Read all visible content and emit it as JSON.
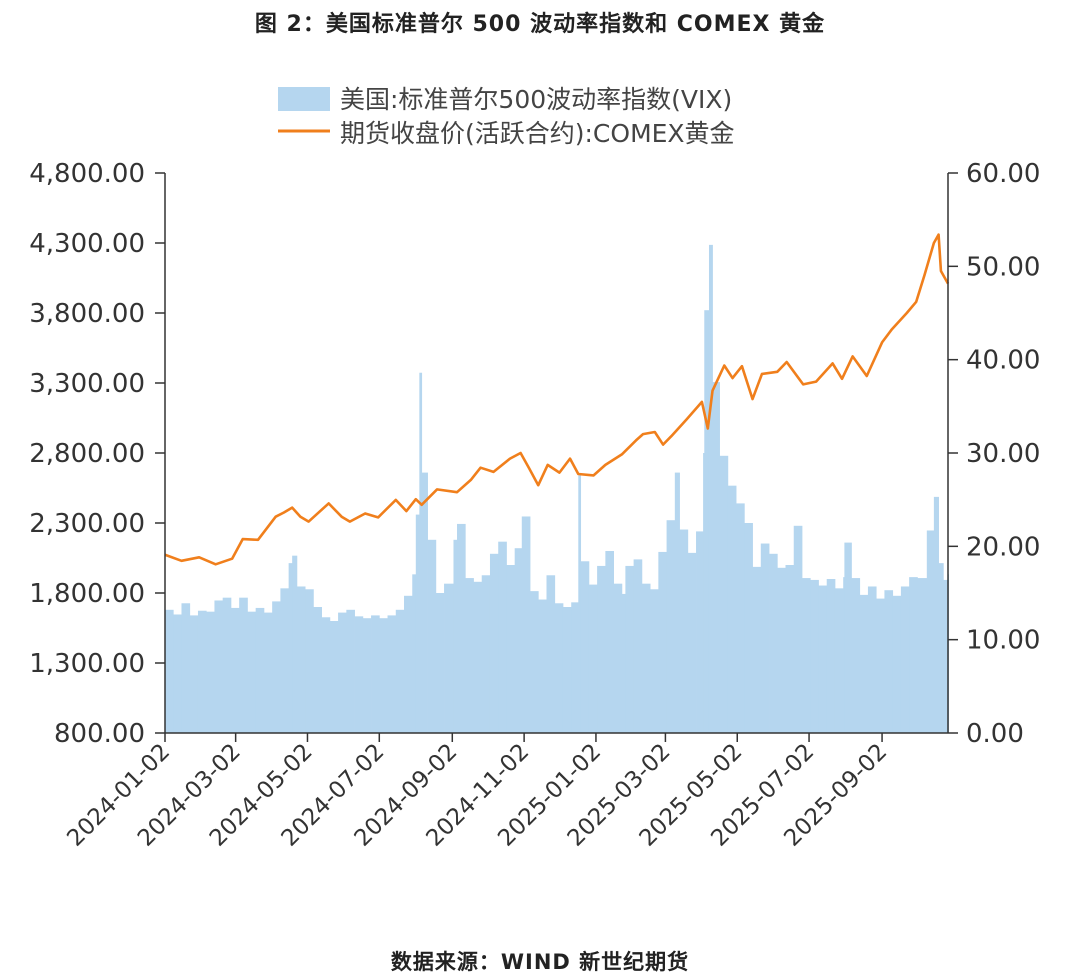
{
  "header": {
    "title": "图 2：美国标准普尔 500 波动率指数和 COMEX 黄金"
  },
  "footer": {
    "source": "数据来源：WIND 新世纪期货"
  },
  "chart_data": {
    "type": "bar+line",
    "legend_position": "top-center",
    "grid": false,
    "colors": {
      "vix": "#b5d6ef",
      "gold": "#f07f1c",
      "axis": "#333333"
    },
    "series": [
      {
        "name": "美国:标准普尔500波动率指数(VIX)",
        "type": "bar",
        "axis": "right",
        "points": [
          [
            "2024-01-02",
            13.2
          ],
          [
            "2024-01-09",
            12.7
          ],
          [
            "2024-01-16",
            13.9
          ],
          [
            "2024-01-23",
            12.6
          ],
          [
            "2024-01-30",
            13.1
          ],
          [
            "2024-02-06",
            13.0
          ],
          [
            "2024-02-13",
            14.2
          ],
          [
            "2024-02-20",
            14.5
          ],
          [
            "2024-02-27",
            13.4
          ],
          [
            "2024-03-05",
            14.5
          ],
          [
            "2024-03-12",
            13.0
          ],
          [
            "2024-03-19",
            13.4
          ],
          [
            "2024-03-26",
            12.9
          ],
          [
            "2024-04-02",
            14.1
          ],
          [
            "2024-04-09",
            15.5
          ],
          [
            "2024-04-16",
            18.2
          ],
          [
            "2024-04-19",
            19.0
          ],
          [
            "2024-04-23",
            15.7
          ],
          [
            "2024-04-30",
            15.4
          ],
          [
            "2024-05-07",
            13.5
          ],
          [
            "2024-05-14",
            12.4
          ],
          [
            "2024-05-21",
            12.0
          ],
          [
            "2024-05-28",
            12.9
          ],
          [
            "2024-06-04",
            13.2
          ],
          [
            "2024-06-11",
            12.5
          ],
          [
            "2024-06-18",
            12.3
          ],
          [
            "2024-06-25",
            12.6
          ],
          [
            "2024-07-02",
            12.3
          ],
          [
            "2024-07-09",
            12.6
          ],
          [
            "2024-07-16",
            13.2
          ],
          [
            "2024-07-23",
            14.7
          ],
          [
            "2024-07-30",
            17.0
          ],
          [
            "2024-08-02",
            23.4
          ],
          [
            "2024-08-05",
            38.6
          ],
          [
            "2024-08-07",
            27.9
          ],
          [
            "2024-08-12",
            20.7
          ],
          [
            "2024-08-19",
            15.0
          ],
          [
            "2024-08-26",
            16.0
          ],
          [
            "2024-09-03",
            20.7
          ],
          [
            "2024-09-06",
            22.4
          ],
          [
            "2024-09-13",
            16.6
          ],
          [
            "2024-09-20",
            16.2
          ],
          [
            "2024-09-27",
            16.9
          ],
          [
            "2024-10-04",
            19.2
          ],
          [
            "2024-10-11",
            20.5
          ],
          [
            "2024-10-18",
            18.0
          ],
          [
            "2024-10-25",
            19.8
          ],
          [
            "2024-10-31",
            23.2
          ],
          [
            "2024-11-07",
            15.2
          ],
          [
            "2024-11-14",
            14.3
          ],
          [
            "2024-11-21",
            16.9
          ],
          [
            "2024-11-28",
            13.9
          ],
          [
            "2024-12-05",
            13.5
          ],
          [
            "2024-12-12",
            14.0
          ],
          [
            "2024-12-18",
            27.6
          ],
          [
            "2024-12-20",
            18.4
          ],
          [
            "2024-12-27",
            15.9
          ],
          [
            "2025-01-03",
            17.9
          ],
          [
            "2025-01-10",
            19.5
          ],
          [
            "2025-01-17",
            16.0
          ],
          [
            "2025-01-24",
            14.9
          ],
          [
            "2025-01-27",
            17.9
          ],
          [
            "2025-02-03",
            18.6
          ],
          [
            "2025-02-10",
            16.0
          ],
          [
            "2025-02-17",
            15.4
          ],
          [
            "2025-02-24",
            19.4
          ],
          [
            "2025-03-03",
            22.8
          ],
          [
            "2025-03-10",
            27.9
          ],
          [
            "2025-03-14",
            21.8
          ],
          [
            "2025-03-21",
            19.3
          ],
          [
            "2025-03-28",
            21.6
          ],
          [
            "2025-04-03",
            30.0
          ],
          [
            "2025-04-04",
            45.3
          ],
          [
            "2025-04-08",
            52.3
          ],
          [
            "2025-04-11",
            37.6
          ],
          [
            "2025-04-17",
            29.7
          ],
          [
            "2025-04-24",
            26.5
          ],
          [
            "2025-05-01",
            24.6
          ],
          [
            "2025-05-08",
            22.5
          ],
          [
            "2025-05-15",
            17.8
          ],
          [
            "2025-05-22",
            20.3
          ],
          [
            "2025-05-29",
            19.2
          ],
          [
            "2025-06-05",
            17.7
          ],
          [
            "2025-06-12",
            18.0
          ],
          [
            "2025-06-19",
            22.2
          ],
          [
            "2025-06-26",
            16.6
          ],
          [
            "2025-07-03",
            16.4
          ],
          [
            "2025-07-10",
            15.8
          ],
          [
            "2025-07-17",
            16.5
          ],
          [
            "2025-07-24",
            15.5
          ],
          [
            "2025-07-31",
            16.7
          ],
          [
            "2025-08-01",
            20.4
          ],
          [
            "2025-08-07",
            16.6
          ],
          [
            "2025-08-14",
            14.8
          ],
          [
            "2025-08-21",
            15.7
          ],
          [
            "2025-08-28",
            14.4
          ],
          [
            "2025-09-04",
            15.3
          ],
          [
            "2025-09-11",
            14.7
          ],
          [
            "2025-09-18",
            15.7
          ],
          [
            "2025-09-25",
            16.7
          ],
          [
            "2025-10-02",
            16.6
          ],
          [
            "2025-10-10",
            21.7
          ],
          [
            "2025-10-16",
            25.3
          ],
          [
            "2025-10-20",
            18.2
          ],
          [
            "2025-10-24",
            16.4
          ],
          [
            "2025-10-28",
            17.0
          ]
        ]
      },
      {
        "name": "期货收盘价(活跃合约):COMEX黄金",
        "type": "line",
        "axis": "left",
        "points": [
          [
            "2024-01-02",
            2073
          ],
          [
            "2024-01-16",
            2030
          ],
          [
            "2024-01-31",
            2055
          ],
          [
            "2024-02-14",
            2005
          ],
          [
            "2024-02-28",
            2045
          ],
          [
            "2024-03-08",
            2185
          ],
          [
            "2024-03-21",
            2180
          ],
          [
            "2024-04-05",
            2345
          ],
          [
            "2024-04-12",
            2375
          ],
          [
            "2024-04-19",
            2410
          ],
          [
            "2024-04-26",
            2345
          ],
          [
            "2024-05-03",
            2310
          ],
          [
            "2024-05-20",
            2440
          ],
          [
            "2024-05-31",
            2345
          ],
          [
            "2024-06-07",
            2310
          ],
          [
            "2024-06-20",
            2368
          ],
          [
            "2024-07-01",
            2340
          ],
          [
            "2024-07-16",
            2465
          ],
          [
            "2024-07-25",
            2385
          ],
          [
            "2024-08-02",
            2470
          ],
          [
            "2024-08-07",
            2430
          ],
          [
            "2024-08-20",
            2540
          ],
          [
            "2024-09-06",
            2520
          ],
          [
            "2024-09-18",
            2610
          ],
          [
            "2024-09-26",
            2695
          ],
          [
            "2024-10-07",
            2665
          ],
          [
            "2024-10-21",
            2760
          ],
          [
            "2024-10-30",
            2800
          ],
          [
            "2024-11-06",
            2695
          ],
          [
            "2024-11-14",
            2570
          ],
          [
            "2024-11-22",
            2715
          ],
          [
            "2024-12-02",
            2660
          ],
          [
            "2024-12-11",
            2760
          ],
          [
            "2024-12-18",
            2650
          ],
          [
            "2024-12-31",
            2640
          ],
          [
            "2025-01-10",
            2715
          ],
          [
            "2025-01-24",
            2790
          ],
          [
            "2025-02-05",
            2890
          ],
          [
            "2025-02-11",
            2935
          ],
          [
            "2025-02-21",
            2950
          ],
          [
            "2025-02-28",
            2860
          ],
          [
            "2025-03-07",
            2920
          ],
          [
            "2025-03-20",
            3040
          ],
          [
            "2025-04-02",
            3165
          ],
          [
            "2025-04-07",
            2975
          ],
          [
            "2025-04-11",
            3245
          ],
          [
            "2025-04-21",
            3425
          ],
          [
            "2025-04-28",
            3335
          ],
          [
            "2025-05-06",
            3420
          ],
          [
            "2025-05-15",
            3185
          ],
          [
            "2025-05-23",
            3365
          ],
          [
            "2025-06-05",
            3380
          ],
          [
            "2025-06-13",
            3450
          ],
          [
            "2025-06-27",
            3290
          ],
          [
            "2025-07-08",
            3310
          ],
          [
            "2025-07-22",
            3440
          ],
          [
            "2025-07-30",
            3330
          ],
          [
            "2025-08-08",
            3490
          ],
          [
            "2025-08-20",
            3350
          ],
          [
            "2025-09-02",
            3590
          ],
          [
            "2025-09-10",
            3680
          ],
          [
            "2025-09-23",
            3800
          ],
          [
            "2025-10-01",
            3880
          ],
          [
            "2025-10-08",
            4070
          ],
          [
            "2025-10-16",
            4300
          ],
          [
            "2025-10-20",
            4360
          ],
          [
            "2025-10-22",
            4100
          ],
          [
            "2025-10-28",
            4010
          ]
        ]
      }
    ],
    "x_ticks": [
      "2024-01-02",
      "2024-03-02",
      "2024-05-02",
      "2024-07-02",
      "2024-09-02",
      "2024-11-02",
      "2025-01-02",
      "2025-03-02",
      "2025-05-02",
      "2025-07-02",
      "2025-09-02"
    ],
    "x_range": [
      "2024-01-02",
      "2025-10-28"
    ],
    "y_left": {
      "ticks": [
        "800.00",
        "1,300.00",
        "1,800.00",
        "2,300.00",
        "2,800.00",
        "3,300.00",
        "3,800.00",
        "4,300.00",
        "4,800.00"
      ],
      "range": [
        800,
        4800
      ]
    },
    "y_right": {
      "ticks": [
        "0.00",
        "10.00",
        "20.00",
        "30.00",
        "40.00",
        "50.00",
        "60.00"
      ],
      "range": [
        0,
        60
      ]
    }
  }
}
